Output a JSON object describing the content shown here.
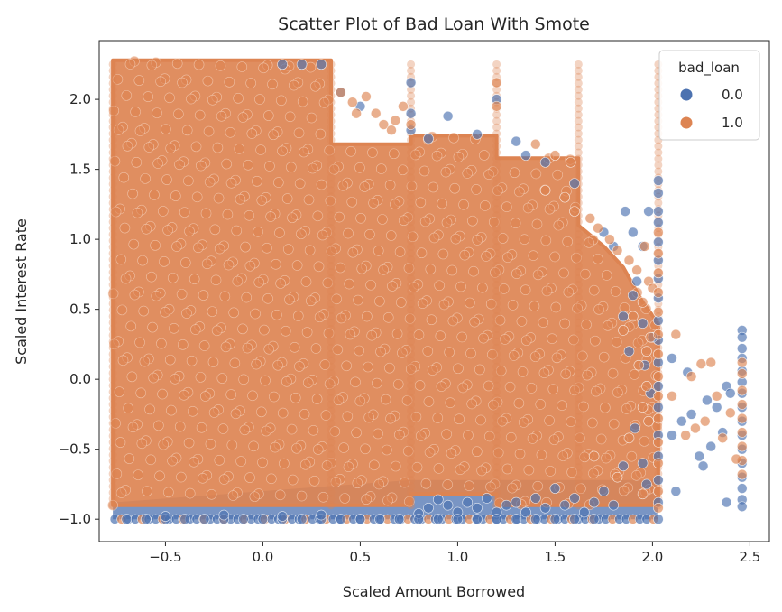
{
  "chart_data": {
    "type": "scatter",
    "title": "Scatter Plot of Bad Loan With Smote",
    "xlabel": "Scaled Amount Borrowed",
    "ylabel": "Scaled Interest Rate",
    "xlim": [
      -0.84,
      2.6
    ],
    "ylim": [
      -1.16,
      2.42
    ],
    "x_ticks": [
      -0.5,
      0.0,
      0.5,
      1.0,
      1.5,
      2.0,
      2.5
    ],
    "x_tick_labels": [
      "−0.5",
      "0.0",
      "0.5",
      "1.0",
      "1.5",
      "2.0",
      "2.5"
    ],
    "y_ticks": [
      -1.0,
      -0.5,
      0.0,
      0.5,
      1.0,
      1.5,
      2.0
    ],
    "y_tick_labels": [
      "−1.0",
      "−0.5",
      "0.0",
      "0.5",
      "1.0",
      "1.5",
      "2.0"
    ],
    "grid": false,
    "legend": {
      "title": "bad_loan",
      "placement": "top-right",
      "entries": [
        "0.0",
        "1.0"
      ]
    },
    "series": [
      {
        "name": "0.0",
        "color": "#4c72b0",
        "opacity": 0.55,
        "points": [
          [
            2.03,
            1.42
          ],
          [
            2.03,
            1.33
          ],
          [
            2.03,
            1.2
          ],
          [
            2.03,
            1.12
          ],
          [
            2.03,
            0.98
          ],
          [
            2.03,
            0.85
          ],
          [
            2.03,
            0.72
          ],
          [
            2.03,
            0.58
          ],
          [
            2.03,
            0.42
          ],
          [
            2.03,
            0.28
          ],
          [
            2.03,
            0.12
          ],
          [
            2.03,
            -0.05
          ],
          [
            2.03,
            -0.2
          ],
          [
            2.03,
            -0.4
          ],
          [
            2.03,
            -0.55
          ],
          [
            2.03,
            -0.72
          ],
          [
            2.03,
            -0.88
          ],
          [
            2.03,
            -1.0
          ],
          [
            2.46,
            0.35
          ],
          [
            2.46,
            0.3
          ],
          [
            2.46,
            0.22
          ],
          [
            2.46,
            0.15
          ],
          [
            2.46,
            0.06
          ],
          [
            2.46,
            -0.02
          ],
          [
            2.46,
            -0.1
          ],
          [
            2.46,
            -0.2
          ],
          [
            2.46,
            -0.3
          ],
          [
            2.46,
            -0.4
          ],
          [
            2.46,
            -0.5
          ],
          [
            2.46,
            -0.6
          ],
          [
            2.46,
            -0.7
          ],
          [
            2.46,
            -0.78
          ],
          [
            2.46,
            -0.86
          ],
          [
            2.46,
            -0.91
          ],
          [
            2.1,
            -0.4
          ],
          [
            2.1,
            0.15
          ],
          [
            2.15,
            -0.3
          ],
          [
            2.2,
            -0.25
          ],
          [
            2.24,
            -0.55
          ],
          [
            2.26,
            -0.62
          ],
          [
            2.3,
            -0.48
          ],
          [
            2.33,
            -0.2
          ],
          [
            2.36,
            -0.38
          ],
          [
            2.38,
            -0.05
          ],
          [
            2.38,
            -0.88
          ],
          [
            2.4,
            -0.1
          ],
          [
            2.12,
            -0.8
          ],
          [
            2.18,
            0.05
          ],
          [
            2.28,
            -0.15
          ],
          [
            1.98,
            1.2
          ],
          [
            1.86,
            1.2
          ],
          [
            1.95,
            0.95
          ],
          [
            1.9,
            1.05
          ],
          [
            1.92,
            0.7
          ],
          [
            1.88,
            0.2
          ],
          [
            1.91,
            -0.35
          ],
          [
            1.95,
            -0.6
          ],
          [
            1.97,
            -0.75
          ],
          [
            1.8,
            -0.9
          ],
          [
            1.85,
            -0.62
          ],
          [
            1.75,
            -0.8
          ],
          [
            1.7,
            -0.88
          ],
          [
            1.65,
            -0.95
          ],
          [
            1.6,
            -0.85
          ],
          [
            1.55,
            -0.9
          ],
          [
            1.5,
            -0.78
          ],
          [
            1.45,
            -0.92
          ],
          [
            1.4,
            -0.85
          ],
          [
            1.35,
            -0.95
          ],
          [
            1.3,
            -0.88
          ],
          [
            1.25,
            -0.9
          ],
          [
            1.2,
            -0.95
          ],
          [
            1.15,
            -0.85
          ],
          [
            1.1,
            -0.92
          ],
          [
            1.05,
            -0.88
          ],
          [
            1.0,
            -0.95
          ],
          [
            0.95,
            -0.9
          ],
          [
            0.9,
            -0.86
          ],
          [
            0.85,
            -0.92
          ],
          [
            0.8,
            -0.96
          ],
          [
            1.7,
            -1.0
          ],
          [
            1.6,
            -1.0
          ],
          [
            1.5,
            -1.0
          ],
          [
            1.4,
            -1.0
          ],
          [
            1.3,
            -1.0
          ],
          [
            1.2,
            -1.0
          ],
          [
            1.1,
            -1.0
          ],
          [
            1.0,
            -1.0
          ],
          [
            0.9,
            -1.0
          ],
          [
            0.8,
            -1.0
          ],
          [
            0.7,
            -1.0
          ],
          [
            0.6,
            -1.0
          ],
          [
            0.5,
            -1.0
          ],
          [
            0.4,
            -1.0
          ],
          [
            0.3,
            -1.0
          ],
          [
            0.2,
            -1.0
          ],
          [
            0.1,
            -1.0
          ],
          [
            0.0,
            -1.0
          ],
          [
            -0.1,
            -1.0
          ],
          [
            -0.2,
            -1.0
          ],
          [
            -0.3,
            -1.0
          ],
          [
            -0.4,
            -1.0
          ],
          [
            -0.5,
            -1.0
          ],
          [
            -0.6,
            -1.0
          ],
          [
            -0.7,
            -1.0
          ],
          [
            0.3,
            -0.97
          ],
          [
            0.1,
            -0.98
          ],
          [
            -0.2,
            -0.97
          ],
          [
            -0.5,
            -0.98
          ],
          [
            0.76,
            2.12
          ],
          [
            0.76,
            1.9
          ],
          [
            0.76,
            1.78
          ],
          [
            0.5,
            1.95
          ],
          [
            0.4,
            2.05
          ],
          [
            0.95,
            1.88
          ],
          [
            1.2,
            2.0
          ],
          [
            0.85,
            1.72
          ],
          [
            1.1,
            1.75
          ],
          [
            0.2,
            2.25
          ],
          [
            0.1,
            2.25
          ],
          [
            0.3,
            2.25
          ],
          [
            1.3,
            1.7
          ],
          [
            1.45,
            1.55
          ],
          [
            1.35,
            1.6
          ],
          [
            1.6,
            1.4
          ],
          [
            1.75,
            1.05
          ],
          [
            1.8,
            0.95
          ],
          [
            1.9,
            0.6
          ],
          [
            1.95,
            0.4
          ],
          [
            1.85,
            0.45
          ],
          [
            2.0,
            0.3
          ],
          [
            1.96,
            0.1
          ],
          [
            1.99,
            -0.1
          ]
        ]
      },
      {
        "name": "1.0",
        "color": "#dd8452",
        "opacity": 0.55,
        "points": [
          [
            0.4,
            2.05
          ],
          [
            0.46,
            1.98
          ],
          [
            0.48,
            1.9
          ],
          [
            0.53,
            2.02
          ],
          [
            0.58,
            1.9
          ],
          [
            0.62,
            1.82
          ],
          [
            0.68,
            1.85
          ],
          [
            0.72,
            1.95
          ],
          [
            0.76,
            1.82
          ],
          [
            0.66,
            1.78
          ],
          [
            1.2,
            2.12
          ],
          [
            1.2,
            1.95
          ],
          [
            1.4,
            1.68
          ],
          [
            1.5,
            1.6
          ],
          [
            1.58,
            1.55
          ],
          [
            1.45,
            1.35
          ],
          [
            1.55,
            1.3
          ],
          [
            1.6,
            1.2
          ],
          [
            1.68,
            1.15
          ],
          [
            1.72,
            1.08
          ],
          [
            1.78,
            1.0
          ],
          [
            1.82,
            0.92
          ],
          [
            1.88,
            0.85
          ],
          [
            1.92,
            0.78
          ],
          [
            1.96,
            0.95
          ],
          [
            1.98,
            0.7
          ],
          [
            2.0,
            0.65
          ],
          [
            1.95,
            0.55
          ],
          [
            1.9,
            0.45
          ],
          [
            1.85,
            0.35
          ],
          [
            1.99,
            0.3
          ],
          [
            1.97,
            0.2
          ],
          [
            1.93,
            0.1
          ],
          [
            1.97,
            -0.05
          ],
          [
            1.95,
            -0.2
          ],
          [
            1.98,
            -0.3
          ],
          [
            2.03,
            1.05
          ],
          [
            2.03,
            0.9
          ],
          [
            2.03,
            0.76
          ],
          [
            2.03,
            0.62
          ],
          [
            2.03,
            0.48
          ],
          [
            2.03,
            0.32
          ],
          [
            2.03,
            0.18
          ],
          [
            2.03,
            0.02
          ],
          [
            2.03,
            -0.12
          ],
          [
            2.03,
            -0.28
          ],
          [
            2.03,
            -0.45
          ],
          [
            2.03,
            -0.6
          ],
          [
            2.03,
            -0.8
          ],
          [
            2.03,
            -0.92
          ],
          [
            2.46,
            0.12
          ],
          [
            2.46,
            0.04
          ],
          [
            2.46,
            -0.08
          ],
          [
            2.46,
            -0.18
          ],
          [
            2.46,
            -0.28
          ],
          [
            2.46,
            -0.38
          ],
          [
            2.46,
            -0.48
          ],
          [
            2.46,
            -0.58
          ],
          [
            2.46,
            -0.68
          ],
          [
            2.12,
            0.32
          ],
          [
            2.1,
            -0.12
          ],
          [
            2.2,
            0.02
          ],
          [
            2.22,
            -0.35
          ],
          [
            2.25,
            0.11
          ],
          [
            2.27,
            -0.3
          ],
          [
            2.3,
            0.12
          ],
          [
            2.33,
            -0.12
          ],
          [
            2.36,
            -0.42
          ],
          [
            2.4,
            -0.24
          ],
          [
            2.43,
            -0.57
          ],
          [
            2.17,
            -0.4
          ],
          [
            1.7,
            -0.55
          ],
          [
            1.82,
            -0.7
          ],
          [
            1.88,
            -0.42
          ],
          [
            1.95,
            -0.82
          ]
        ],
        "dense_region": {
          "polygon": [
            [
              -0.77,
              2.28
            ],
            [
              0.35,
              2.28
            ],
            [
              0.35,
              1.68
            ],
            [
              0.76,
              1.68
            ],
            [
              0.76,
              1.74
            ],
            [
              1.2,
              1.74
            ],
            [
              1.2,
              1.58
            ],
            [
              1.62,
              1.58
            ],
            [
              1.62,
              1.1
            ],
            [
              1.75,
              0.95
            ],
            [
              1.85,
              0.8
            ],
            [
              1.95,
              0.55
            ],
            [
              2.03,
              0.4
            ],
            [
              2.03,
              -0.9
            ],
            [
              1.2,
              -0.9
            ],
            [
              1.2,
              -0.82
            ],
            [
              0.76,
              -0.82
            ],
            [
              0.76,
              -0.9
            ],
            [
              -0.77,
              -0.9
            ]
          ],
          "columns": [
            -0.77,
            0.35,
            0.76,
            1.2,
            1.62,
            2.03
          ],
          "bottom_row_y": -1.0
        }
      }
    ]
  }
}
